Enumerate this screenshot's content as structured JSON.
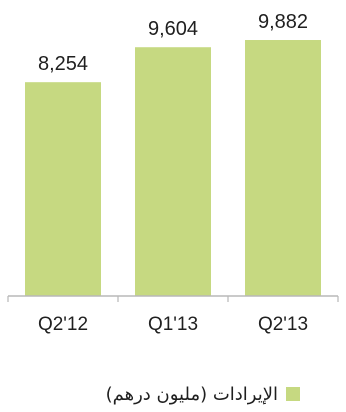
{
  "chart_data": {
    "type": "bar",
    "categories": [
      "Q2'12",
      "Q1'13",
      "Q2'13"
    ],
    "values": [
      8254,
      9604,
      9882
    ],
    "data_labels": [
      "8,254",
      "9,604",
      "9,882"
    ],
    "series": [
      {
        "name": "الإيرادات (مليون درهم)",
        "values": [
          8254,
          9604,
          9882
        ]
      }
    ],
    "ylim": [
      0,
      10500
    ],
    "legend": "bottom",
    "grid": false,
    "colors": {
      "bar": "#c6d981",
      "axis": "#b8b8b8",
      "text": "#1f1f1f"
    }
  },
  "legend": {
    "label": "الإيرادات (مليون درهم)"
  }
}
